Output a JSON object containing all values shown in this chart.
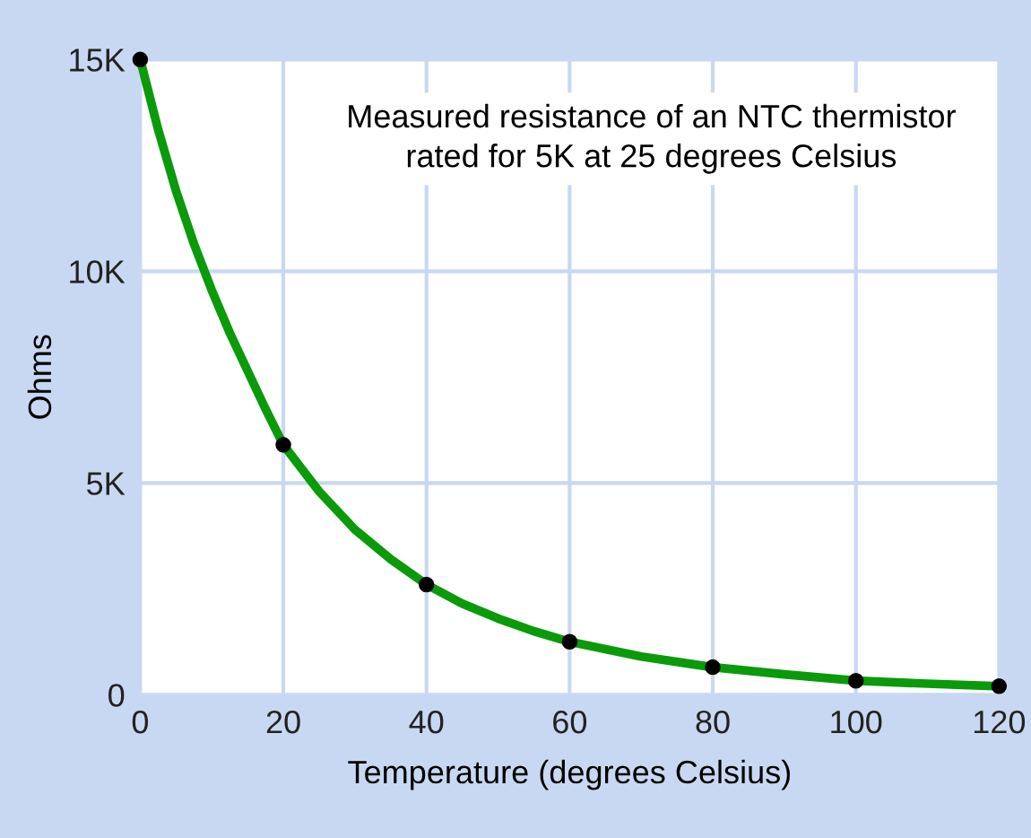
{
  "chart_data": {
    "type": "line",
    "xlabel": "Temperature (degrees Celsius)",
    "ylabel": "Ohms",
    "annotations": [
      "Measured resistance of an NTC thermistor\nrated for 5K at 25 degrees Celsius"
    ],
    "series": [
      {
        "color": "#0a9a0a",
        "x": [
          0,
          2.5,
          5,
          7.5,
          10,
          12.5,
          15,
          17.5,
          20,
          25,
          30,
          35,
          40,
          45,
          50,
          55,
          60,
          70,
          80,
          90,
          100,
          110,
          120
        ],
        "values": [
          15000,
          13350,
          11900,
          10650,
          9550,
          8550,
          7650,
          6750,
          5900,
          4800,
          3900,
          3200,
          2600,
          2150,
          1800,
          1500,
          1250,
          900,
          650,
          480,
          330,
          260,
          200
        ]
      },
      {
        "type": "scatter",
        "color": "#000000",
        "marker": "circle",
        "x": [
          0,
          20,
          40,
          60,
          80,
          100,
          120
        ],
        "values": [
          15000,
          5900,
          2600,
          1250,
          650,
          330,
          200
        ]
      }
    ],
    "line_style": "solid",
    "xlim": [
      0,
      120
    ],
    "xticks": [
      0,
      20,
      40,
      60,
      80,
      100,
      120
    ],
    "ylim": [
      0,
      15000
    ],
    "yticks": [
      {
        "value": 0,
        "label": "0"
      },
      {
        "value": 5000,
        "label": "5K"
      },
      {
        "value": 10000,
        "label": "10K"
      },
      {
        "value": 15000,
        "label": "15K"
      }
    ],
    "grid": true,
    "legend": false
  }
}
